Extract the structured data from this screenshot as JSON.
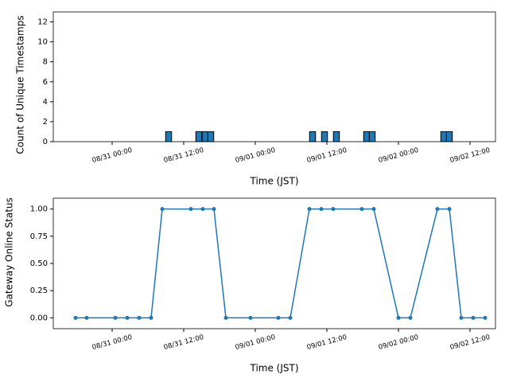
{
  "chart_data": [
    {
      "type": "bar",
      "y_label": "Count of Unique Timestamps",
      "x_label": "Time (JST)",
      "color": "#1f77b4",
      "x": [
        "08/31 09:28",
        "08/31 14:32",
        "08/31 15:36",
        "08/31 16:32",
        "09/01 09:36",
        "09/01 11:36",
        "09/01 13:36",
        "09/01 18:40",
        "09/01 19:36",
        "09/02 07:36",
        "09/02 08:32"
      ],
      "values": [
        1,
        1,
        1,
        1,
        1,
        1,
        1,
        1,
        1,
        1,
        1
      ],
      "xlim": [
        "08/30 14:08",
        "09/02 16:16"
      ],
      "xticks": [
        "08/31 00:00",
        "08/31 12:00",
        "09/01 00:00",
        "09/01 12:00",
        "09/02 00:00",
        "09/02 12:00"
      ],
      "ylim": [
        0,
        13
      ],
      "yticks": [
        0,
        2,
        4,
        6,
        8,
        10,
        12
      ]
    },
    {
      "type": "line",
      "y_label": "Gateway Online Status",
      "x_label": "Time (JST)",
      "color": "#1f77b4",
      "x": [
        "08/30 17:52",
        "08/30 19:44",
        "08/31 00:32",
        "08/31 02:32",
        "08/31 04:32",
        "08/31 06:32",
        "08/31 08:24",
        "08/31 13:12",
        "08/31 15:12",
        "08/31 17:04",
        "08/31 19:04",
        "08/31 23:12",
        "09/01 03:52",
        "09/01 05:52",
        "09/01 09:04",
        "09/01 11:04",
        "09/01 13:04",
        "09/01 17:52",
        "09/01 19:52",
        "09/02 00:00",
        "09/02 02:00",
        "09/02 06:32",
        "09/02 08:32",
        "09/02 10:32",
        "09/02 12:32",
        "09/02 14:32"
      ],
      "values": [
        0,
        0,
        0,
        0,
        0,
        0,
        1,
        1,
        1,
        1,
        0,
        0,
        0,
        0,
        1,
        1,
        1,
        1,
        1,
        0,
        0,
        1,
        1,
        0,
        0,
        0
      ],
      "xlim": [
        "08/30 14:08",
        "09/02 16:16"
      ],
      "xticks": [
        "08/31 00:00",
        "08/31 12:00",
        "09/01 00:00",
        "09/01 12:00",
        "09/02 00:00",
        "09/02 12:00"
      ],
      "ylim": [
        -0.1,
        1.1
      ],
      "yticks": [
        {
          "value": 0,
          "label": "0.00"
        },
        {
          "value": 0.25,
          "label": "0.25"
        },
        {
          "value": 0.5,
          "label": "0.50"
        },
        {
          "value": 0.75,
          "label": "0.75"
        },
        {
          "value": 1,
          "label": "1.00"
        }
      ]
    }
  ]
}
